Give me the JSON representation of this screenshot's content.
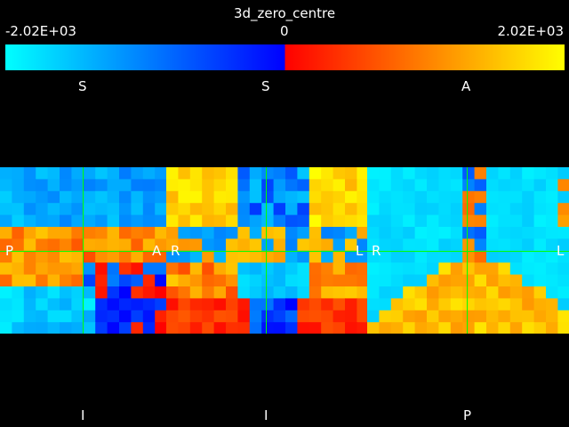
{
  "title": "3d_zero_centre",
  "colorbar": {
    "min_label": "-2.02E+03",
    "mid_label": "0",
    "max_label": "2.02E+03",
    "colors": [
      "#00ffff",
      "#0000ff",
      "#ff0000",
      "#ff8000",
      "#ffff00"
    ]
  },
  "views": [
    {
      "top_label": "S",
      "bottom_label": "I",
      "left_label": "P",
      "right_label": "A"
    },
    {
      "top_label": "S",
      "bottom_label": "I",
      "left_label": "R",
      "right_label": "L"
    },
    {
      "top_label": "A",
      "bottom_label": "P",
      "left_label": "R",
      "right_label": "L"
    }
  ],
  "crosshair_color": "#00ff00"
}
